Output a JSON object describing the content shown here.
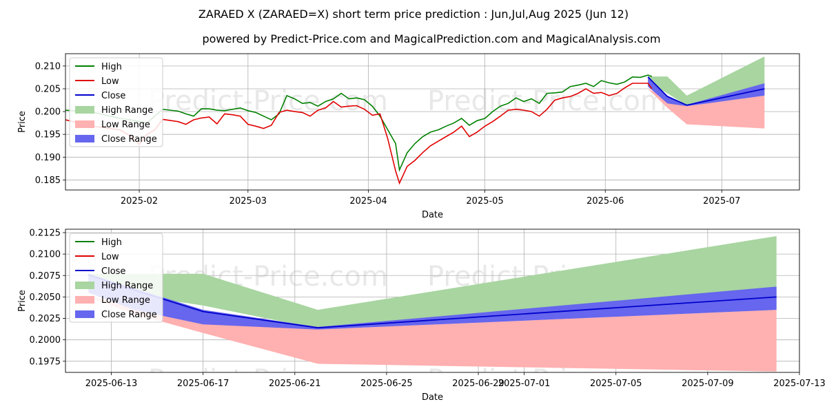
{
  "title": "ZARAED X (ZARAED=X) short term price prediction : Jun,Jul,Aug 2025 (Jun 12)",
  "subtitle": "powered by Predict-Price.com and MagicalPrediction.com and MagicalAnalysis.com",
  "watermark": "Predict-Price.com",
  "colors": {
    "high": "#008000",
    "low": "#e00000",
    "close": "#0000cc",
    "high_range": "#a8d5a0",
    "low_range": "#ffb0b0",
    "close_range": "#6666ee",
    "grid": "#b0b0b0",
    "watermark": "#e8e8e8"
  },
  "chart_data": [
    {
      "type": "line",
      "panel": "top",
      "xlabel": "Date",
      "ylabel": "Price",
      "xlim": [
        "2025-01-13",
        "2025-07-21"
      ],
      "ylim": [
        0.1828,
        0.2127
      ],
      "grid": true,
      "legend_position": "top-left",
      "x_ticks": [
        "2025-02-01",
        "2025-03-01",
        "2025-04-01",
        "2025-05-01",
        "2025-06-01",
        "2025-07-01"
      ],
      "x_tick_labels": [
        "2025-02",
        "2025-03",
        "2025-04",
        "2025-05",
        "2025-06",
        "2025-07"
      ],
      "y_ticks": [
        0.185,
        0.19,
        0.195,
        0.2,
        0.205,
        0.21
      ],
      "y_tick_labels": [
        "0.185",
        "0.190",
        "0.195",
        "0.200",
        "0.205",
        "0.210"
      ],
      "legend": [
        "High",
        "Low",
        "Close",
        "High Range",
        "Low Range",
        "Close Range"
      ],
      "series": [
        {
          "name": "High",
          "points": [
            [
              "2025-01-13",
              0.2003
            ],
            [
              "2025-01-20",
              0.1999
            ],
            [
              "2025-01-27",
              0.1985
            ],
            [
              "2025-01-31",
              0.198
            ],
            [
              "2025-02-03",
              0.1975
            ],
            [
              "2025-02-05",
              0.199
            ],
            [
              "2025-02-07",
              0.2005
            ],
            [
              "2025-02-11",
              0.2001
            ],
            [
              "2025-02-13",
              0.1995
            ],
            [
              "2025-02-15",
              0.199
            ],
            [
              "2025-02-17",
              0.2006
            ],
            [
              "2025-02-19",
              0.2006
            ],
            [
              "2025-02-21",
              0.2003
            ],
            [
              "2025-02-23",
              0.2002
            ],
            [
              "2025-02-25",
              0.2005
            ],
            [
              "2025-02-27",
              0.2008
            ],
            [
              "2025-03-01",
              0.2002
            ],
            [
              "2025-03-03",
              0.1998
            ],
            [
              "2025-03-05",
              0.199
            ],
            [
              "2025-03-07",
              0.1982
            ],
            [
              "2025-03-09",
              0.1995
            ],
            [
              "2025-03-11",
              0.2035
            ],
            [
              "2025-03-13",
              0.2028
            ],
            [
              "2025-03-15",
              0.2018
            ],
            [
              "2025-03-17",
              0.202
            ],
            [
              "2025-03-19",
              0.2012
            ],
            [
              "2025-03-21",
              0.2022
            ],
            [
              "2025-03-23",
              0.2028
            ],
            [
              "2025-03-25",
              0.204
            ],
            [
              "2025-03-27",
              0.2028
            ],
            [
              "2025-03-29",
              0.203
            ],
            [
              "2025-03-31",
              0.2026
            ],
            [
              "2025-04-02",
              0.2012
            ],
            [
              "2025-04-04",
              0.199
            ],
            [
              "2025-04-06",
              0.196
            ],
            [
              "2025-04-08",
              0.193
            ],
            [
              "2025-04-09",
              0.1872
            ],
            [
              "2025-04-11",
              0.191
            ],
            [
              "2025-04-13",
              0.193
            ],
            [
              "2025-04-15",
              0.1945
            ],
            [
              "2025-04-17",
              0.1955
            ],
            [
              "2025-04-19",
              0.196
            ],
            [
              "2025-04-21",
              0.1968
            ],
            [
              "2025-04-23",
              0.1975
            ],
            [
              "2025-04-25",
              0.1985
            ],
            [
              "2025-04-27",
              0.197
            ],
            [
              "2025-04-29",
              0.198
            ],
            [
              "2025-05-01",
              0.1985
            ],
            [
              "2025-05-03",
              0.2
            ],
            [
              "2025-05-05",
              0.2012
            ],
            [
              "2025-05-07",
              0.2018
            ],
            [
              "2025-05-09",
              0.203
            ],
            [
              "2025-05-11",
              0.2022
            ],
            [
              "2025-05-13",
              0.2028
            ],
            [
              "2025-05-15",
              0.2018
            ],
            [
              "2025-05-17",
              0.204
            ],
            [
              "2025-05-19",
              0.2041
            ],
            [
              "2025-05-21",
              0.2043
            ],
            [
              "2025-05-23",
              0.2055
            ],
            [
              "2025-05-25",
              0.2058
            ],
            [
              "2025-05-27",
              0.2062
            ],
            [
              "2025-05-29",
              0.2055
            ],
            [
              "2025-05-31",
              0.2068
            ],
            [
              "2025-06-02",
              0.2063
            ],
            [
              "2025-06-04",
              0.206
            ],
            [
              "2025-06-06",
              0.2065
            ],
            [
              "2025-06-08",
              0.2076
            ],
            [
              "2025-06-10",
              0.2075
            ],
            [
              "2025-06-12",
              0.208
            ],
            [
              "2025-06-13",
              0.2077
            ]
          ]
        },
        {
          "name": "Low",
          "points": [
            [
              "2025-01-13",
              0.1982
            ],
            [
              "2025-01-20",
              0.1968
            ],
            [
              "2025-01-27",
              0.196
            ],
            [
              "2025-01-30",
              0.1945
            ],
            [
              "2025-02-01",
              0.1928
            ],
            [
              "2025-02-03",
              0.195
            ],
            [
              "2025-02-05",
              0.196
            ],
            [
              "2025-02-07",
              0.1983
            ],
            [
              "2025-02-11",
              0.1978
            ],
            [
              "2025-02-13",
              0.1972
            ],
            [
              "2025-02-15",
              0.1982
            ],
            [
              "2025-02-17",
              0.1986
            ],
            [
              "2025-02-19",
              0.1988
            ],
            [
              "2025-02-21",
              0.1973
            ],
            [
              "2025-02-23",
              0.1995
            ],
            [
              "2025-02-25",
              0.1993
            ],
            [
              "2025-02-27",
              0.199
            ],
            [
              "2025-03-01",
              0.1972
            ],
            [
              "2025-03-03",
              0.1968
            ],
            [
              "2025-03-05",
              0.1963
            ],
            [
              "2025-03-07",
              0.197
            ],
            [
              "2025-03-09",
              0.1998
            ],
            [
              "2025-03-11",
              0.2003
            ],
            [
              "2025-03-13",
              0.2
            ],
            [
              "2025-03-15",
              0.1998
            ],
            [
              "2025-03-17",
              0.199
            ],
            [
              "2025-03-19",
              0.2003
            ],
            [
              "2025-03-21",
              0.2008
            ],
            [
              "2025-03-23",
              0.2022
            ],
            [
              "2025-03-25",
              0.201
            ],
            [
              "2025-03-27",
              0.2012
            ],
            [
              "2025-03-29",
              0.2013
            ],
            [
              "2025-03-31",
              0.2005
            ],
            [
              "2025-04-02",
              0.1992
            ],
            [
              "2025-04-04",
              0.1995
            ],
            [
              "2025-04-06",
              0.194
            ],
            [
              "2025-04-08",
              0.187
            ],
            [
              "2025-04-09",
              0.1843
            ],
            [
              "2025-04-11",
              0.188
            ],
            [
              "2025-04-13",
              0.1893
            ],
            [
              "2025-04-15",
              0.191
            ],
            [
              "2025-04-17",
              0.1925
            ],
            [
              "2025-04-19",
              0.1935
            ],
            [
              "2025-04-21",
              0.1945
            ],
            [
              "2025-04-23",
              0.1955
            ],
            [
              "2025-04-25",
              0.1968
            ],
            [
              "2025-04-27",
              0.1945
            ],
            [
              "2025-04-29",
              0.1955
            ],
            [
              "2025-05-01",
              0.1968
            ],
            [
              "2025-05-03",
              0.1978
            ],
            [
              "2025-05-05",
              0.199
            ],
            [
              "2025-05-07",
              0.2003
            ],
            [
              "2025-05-09",
              0.2005
            ],
            [
              "2025-05-11",
              0.2003
            ],
            [
              "2025-05-13",
              0.2
            ],
            [
              "2025-05-15",
              0.199
            ],
            [
              "2025-05-17",
              0.2005
            ],
            [
              "2025-05-19",
              0.2025
            ],
            [
              "2025-05-21",
              0.203
            ],
            [
              "2025-05-23",
              0.2033
            ],
            [
              "2025-05-25",
              0.204
            ],
            [
              "2025-05-27",
              0.205
            ],
            [
              "2025-05-29",
              0.204
            ],
            [
              "2025-05-31",
              0.2042
            ],
            [
              "2025-06-02",
              0.2035
            ],
            [
              "2025-06-04",
              0.204
            ],
            [
              "2025-06-06",
              0.2052
            ],
            [
              "2025-06-08",
              0.2062
            ],
            [
              "2025-06-10",
              0.2062
            ],
            [
              "2025-06-12",
              0.2062
            ],
            [
              "2025-06-13",
              0.205
            ]
          ]
        }
      ],
      "forecast": {
        "dates": [
          "2025-06-12",
          "2025-06-17",
          "2025-06-22",
          "2025-07-12"
        ],
        "high_range": {
          "upper": [
            0.2077,
            0.2077,
            0.2035,
            0.2121
          ],
          "lower": [
            0.2065,
            0.204,
            0.2013,
            0.2035
          ]
        },
        "low_range": {
          "upper": [
            0.205,
            0.203,
            0.2012,
            0.2035
          ],
          "lower": [
            0.205,
            0.2008,
            0.1972,
            0.1963
          ]
        },
        "close_range": {
          "upper": [
            0.2077,
            0.2035,
            0.2015,
            0.2062
          ],
          "lower": [
            0.2055,
            0.2018,
            0.2012,
            0.2035
          ]
        },
        "close": [
          0.2076,
          0.2033,
          0.2014,
          0.205
        ]
      }
    },
    {
      "type": "line",
      "panel": "bottom",
      "xlabel": "Date",
      "ylabel": "Price",
      "xlim": [
        "2025-06-11",
        "2025-07-13"
      ],
      "ylim": [
        0.1962,
        0.2129
      ],
      "grid": true,
      "legend_position": "top-left",
      "x_ticks": [
        "2025-06-13",
        "2025-06-17",
        "2025-06-21",
        "2025-06-25",
        "2025-06-29",
        "2025-07-01",
        "2025-07-05",
        "2025-07-09",
        "2025-07-13"
      ],
      "x_tick_labels": [
        "2025-06-13",
        "2025-06-17",
        "2025-06-21",
        "2025-06-25",
        "2025-06-29",
        "2025-07-01",
        "2025-07-05",
        "2025-07-09",
        "2025-07-13"
      ],
      "y_ticks": [
        0.1975,
        0.2,
        0.2025,
        0.205,
        0.2075,
        0.21,
        0.2125
      ],
      "y_tick_labels": [
        "0.1975",
        "0.2000",
        "0.2025",
        "0.2050",
        "0.2075",
        "0.2100",
        "0.2125"
      ],
      "legend": [
        "High",
        "Low",
        "Close",
        "High Range",
        "Low Range",
        "Close Range"
      ],
      "forecast": {
        "dates": [
          "2025-06-12",
          "2025-06-14",
          "2025-06-17",
          "2025-06-22",
          "2025-07-12"
        ],
        "high_range": {
          "upper": [
            0.2077,
            0.2077,
            0.2077,
            0.2035,
            0.2121
          ],
          "lower": [
            0.2065,
            0.2052,
            0.204,
            0.2013,
            0.2035
          ]
        },
        "low_range": {
          "upper": [
            0.205,
            0.2042,
            0.203,
            0.2012,
            0.2035
          ],
          "lower": [
            0.205,
            0.203,
            0.2008,
            0.1972,
            0.1963
          ]
        },
        "close_range": {
          "upper": [
            0.2077,
            0.206,
            0.2035,
            0.2015,
            0.2062
          ],
          "lower": [
            0.2055,
            0.2035,
            0.2018,
            0.2012,
            0.2035
          ]
        },
        "close": [
          0.2076,
          0.2058,
          0.2033,
          0.2014,
          0.205
        ]
      }
    }
  ]
}
